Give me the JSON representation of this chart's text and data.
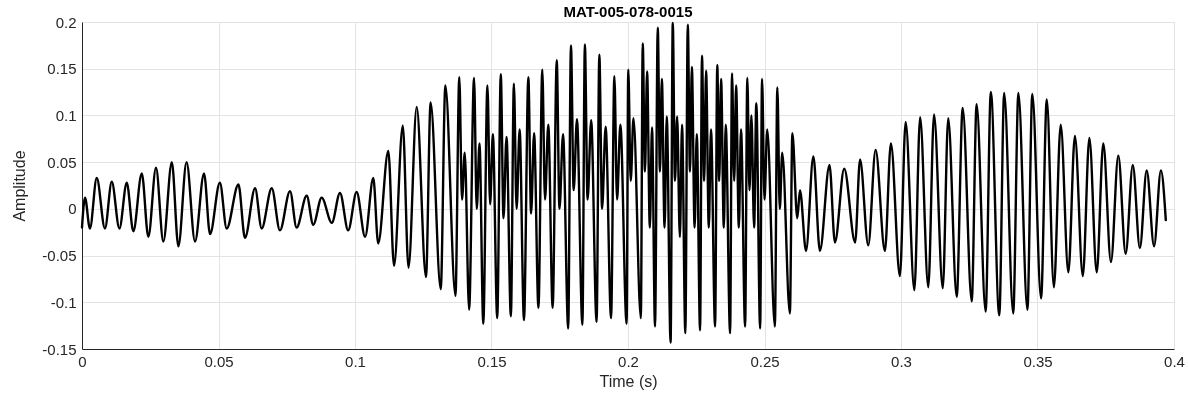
{
  "chart_data": {
    "type": "line",
    "title": "MAT-005-078-0015",
    "xlabel": "Time (s)",
    "ylabel": "Amplitude",
    "line_style": "solid",
    "x": [
      0,
      0.0011,
      0.0029,
      0.0054,
      0.0084,
      0.0109,
      0.0137,
      0.0164,
      0.0188,
      0.0219,
      0.0243,
      0.0271,
      0.0298,
      0.0329,
      0.0353,
      0.0383,
      0.0414,
      0.0447,
      0.0469,
      0.0505,
      0.053,
      0.0573,
      0.0597,
      0.0634,
      0.0658,
      0.0695,
      0.0725,
      0.0762,
      0.0786,
      0.0823,
      0.0847,
      0.0878,
      0.0915,
      0.0945,
      0.0975,
      0.1006,
      0.1037,
      0.1067,
      0.1085,
      0.1122,
      0.1143,
      0.1175,
      0.1196,
      0.1226,
      0.126,
      0.1277,
      0.1314,
      0.1331,
      0.1368,
      0.1382,
      0.1392,
      0.1402,
      0.1418,
      0.1436,
      0.1446,
      0.1456,
      0.147,
      0.1485,
      0.1495,
      0.1505,
      0.1521,
      0.1534,
      0.1544,
      0.1555,
      0.1571,
      0.1582,
      0.1592,
      0.1603,
      0.1619,
      0.1635,
      0.1645,
      0.1656,
      0.1672,
      0.1686,
      0.1696,
      0.1708,
      0.1724,
      0.1739,
      0.1749,
      0.1762,
      0.1781,
      0.1791,
      0.1801,
      0.1813,
      0.1833,
      0.1842,
      0.1852,
      0.1865,
      0.1885,
      0.1895,
      0.1905,
      0.1918,
      0.1938,
      0.195,
      0.196,
      0.1972,
      0.1995,
      0.2001,
      0.201,
      0.202,
      0.2047,
      0.2054,
      0.2062,
      0.207,
      0.208,
      0.2088,
      0.2099,
      0.2109,
      0.2117,
      0.2124,
      0.2134,
      0.2142,
      0.2156,
      0.2164,
      0.2172,
      0.218,
      0.219,
      0.2198,
      0.221,
      0.2219,
      0.2227,
      0.2234,
      0.2244,
      0.2252,
      0.2264,
      0.2271,
      0.2279,
      0.2286,
      0.2296,
      0.2304,
      0.2319,
      0.2327,
      0.2334,
      0.2341,
      0.2351,
      0.2358,
      0.2374,
      0.2381,
      0.2389,
      0.2396,
      0.2406,
      0.2414,
      0.2429,
      0.2437,
      0.2445,
      0.2452,
      0.2462,
      0.247,
      0.2484,
      0.2491,
      0.25,
      0.251,
      0.2538,
      0.2547,
      0.2556,
      0.2565,
      0.2593,
      0.2602,
      0.262,
      0.263,
      0.2652,
      0.2679,
      0.2703,
      0.2738,
      0.2758,
      0.2792,
      0.2832,
      0.285,
      0.288,
      0.2907,
      0.2941,
      0.2963,
      0.2996,
      0.3017,
      0.3049,
      0.307,
      0.31,
      0.3121,
      0.3153,
      0.3173,
      0.3204,
      0.3226,
      0.3259,
      0.3277,
      0.331,
      0.3329,
      0.336,
      0.3378,
      0.3411,
      0.343,
      0.3463,
      0.3481,
      0.3513,
      0.3534,
      0.356,
      0.3585,
      0.3613,
      0.3637,
      0.3666,
      0.369,
      0.3717,
      0.3741,
      0.3769,
      0.3796,
      0.3823,
      0.3849,
      0.3875,
      0.39,
      0.3927,
      0.3952,
      0.397
    ],
    "series": [
      {
        "color": "#000000",
        "values": [
          -0.02,
          0.012,
          -0.021,
          0.033,
          -0.021,
          0.029,
          -0.021,
          0.028,
          -0.024,
          0.038,
          -0.03,
          0.044,
          -0.035,
          0.05,
          -0.04,
          0.05,
          -0.035,
          0.038,
          -0.027,
          0.028,
          -0.021,
          0.026,
          -0.031,
          0.022,
          -0.021,
          0.022,
          -0.023,
          0.019,
          -0.02,
          0.014,
          -0.017,
          0.012,
          -0.015,
          0.017,
          -0.023,
          0.018,
          -0.03,
          0.033,
          -0.037,
          0.062,
          -0.061,
          0.089,
          -0.063,
          0.109,
          -0.073,
          0.114,
          -0.086,
          0.132,
          -0.093,
          0.141,
          0.01,
          0.06,
          -0.108,
          0.14,
          0,
          0.07,
          -0.123,
          0.132,
          0.005,
          0.08,
          -0.117,
          0.144,
          -0.01,
          0.077,
          -0.115,
          0.134,
          0,
          0.085,
          -0.119,
          0.141,
          -0.005,
          0.081,
          -0.106,
          0.149,
          0.01,
          0.09,
          -0.106,
          0.159,
          0,
          0.08,
          -0.128,
          0.175,
          0.02,
          0.096,
          -0.124,
          0.176,
          0.01,
          0.095,
          -0.121,
          0.165,
          0,
          0.088,
          -0.117,
          0.142,
          0.01,
          0.09,
          -0.123,
          0.149,
          0.03,
          0.097,
          -0.117,
          0.177,
          0.04,
          0.147,
          -0.02,
          0.087,
          -0.126,
          0.194,
          0.04,
          0.139,
          -0.02,
          0.099,
          -0.143,
          0.199,
          0.03,
          0.099,
          -0.03,
          0.09,
          -0.133,
          0.197,
          0.04,
          0.152,
          -0.02,
          0.08,
          -0.13,
          0.164,
          0.03,
          0.148,
          -0.02,
          0.085,
          -0.126,
          0.154,
          0.03,
          0.139,
          -0.02,
          0.09,
          -0.133,
          0.145,
          0.03,
          0.132,
          -0.02,
          0.085,
          -0.126,
          0.14,
          0.02,
          0.1,
          -0.02,
          0.113,
          -0.128,
          0.139,
          0.01,
          0.085,
          -0.126,
          0.13,
          0,
          0.06,
          -0.112,
          0.081,
          -0.01,
          0.02,
          -0.045,
          0.056,
          -0.045,
          0.047,
          -0.036,
          0.043,
          -0.036,
          0.053,
          -0.039,
          0.063,
          -0.045,
          0.07,
          -0.072,
          0.093,
          -0.087,
          0.098,
          -0.084,
          0.101,
          -0.085,
          0.097,
          -0.094,
          0.108,
          -0.099,
          0.112,
          -0.11,
          0.125,
          -0.114,
          0.124,
          -0.112,
          0.124,
          -0.108,
          0.123,
          -0.096,
          0.117,
          -0.084,
          0.09,
          -0.068,
          0.078,
          -0.072,
          0.076,
          -0.068,
          0.07,
          -0.057,
          0.057,
          -0.048,
          0.047,
          -0.042,
          0.041,
          -0.04,
          0.041,
          -0.012
        ]
      }
    ],
    "xlim": [
      0,
      0.4
    ],
    "ylim": [
      -0.15,
      0.2
    ],
    "xticks": [
      0,
      0.05,
      0.1,
      0.15,
      0.2,
      0.25,
      0.3,
      0.35,
      0.4
    ],
    "yticks": [
      -0.15,
      -0.1,
      -0.05,
      0,
      0.05,
      0.1,
      0.15,
      0.2
    ],
    "grid": true
  }
}
